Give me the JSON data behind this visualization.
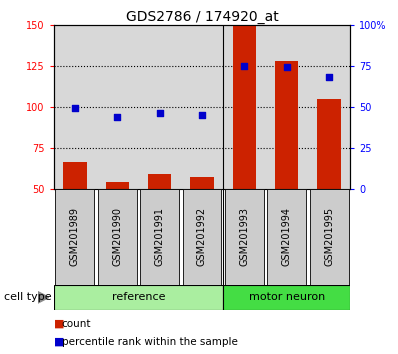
{
  "title": "GDS2786 / 174920_at",
  "samples": [
    "GSM201989",
    "GSM201990",
    "GSM201991",
    "GSM201992",
    "GSM201993",
    "GSM201994",
    "GSM201995"
  ],
  "count_values": [
    66,
    54,
    59,
    57,
    149,
    128,
    105
  ],
  "percentile_values": [
    49,
    44,
    46,
    45,
    75,
    74,
    68
  ],
  "groups": [
    {
      "label": "reference",
      "start": 0,
      "end": 4,
      "color": "#aaeea0"
    },
    {
      "label": "motor neuron",
      "start": 4,
      "end": 7,
      "color": "#44dd44"
    }
  ],
  "left_ylim": [
    50,
    150
  ],
  "left_yticks": [
    50,
    75,
    100,
    125,
    150
  ],
  "right_ylim": [
    0,
    100
  ],
  "right_yticks": [
    0,
    25,
    50,
    75,
    100
  ],
  "right_yticklabels": [
    "0",
    "25",
    "50",
    "75",
    "100%"
  ],
  "bar_color": "#cc2200",
  "scatter_color": "#0000cc",
  "bar_width": 0.55,
  "background_color": "#ffffff",
  "plot_bg_color": "#d8d8d8",
  "sample_box_color": "#cccccc",
  "title_fontsize": 10,
  "tick_label_fontsize": 7,
  "legend_fontsize": 8,
  "cell_type_label": "cell type",
  "legend_count": "count",
  "legend_percentile": "percentile rank within the sample"
}
